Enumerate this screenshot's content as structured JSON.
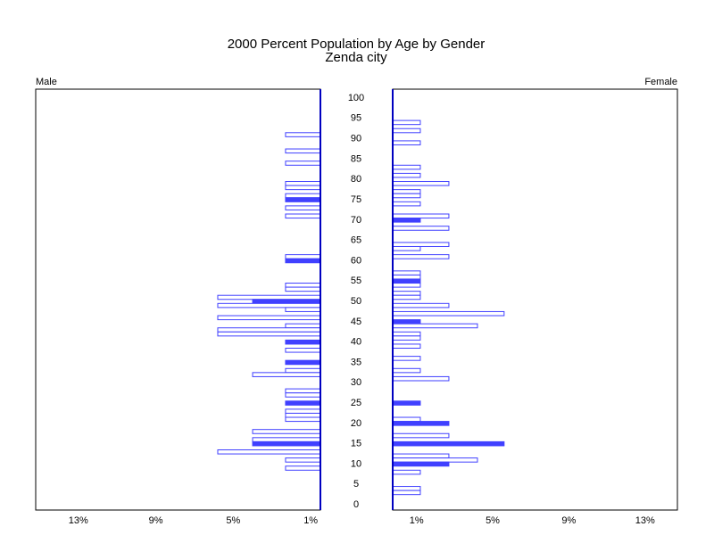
{
  "chart_data": {
    "type": "population-pyramid",
    "title": "2000 Percent Population by Age by Gender",
    "subtitle": "Zenda city",
    "ylim": [
      -1.3,
      102.2
    ],
    "yticks": [
      0,
      5,
      10,
      15,
      20,
      25,
      30,
      35,
      40,
      45,
      50,
      55,
      60,
      65,
      70,
      75,
      80,
      85,
      90,
      95,
      100
    ],
    "color": "#4040ff",
    "panels": [
      {
        "name": "Male",
        "side": "left",
        "xlim": [
          0.5,
          15.2
        ],
        "xticks": [
          {
            "value": 13,
            "label": "13%"
          },
          {
            "value": 9,
            "label": "9%"
          },
          {
            "value": 5,
            "label": "5%"
          },
          {
            "value": 1,
            "label": "1%"
          }
        ],
        "ages": [
          91,
          87,
          84,
          79,
          78,
          76,
          75,
          73,
          71,
          61,
          60,
          54,
          53,
          51,
          50,
          49,
          48,
          46,
          44,
          43,
          42,
          40,
          38,
          35,
          33,
          32,
          28,
          27,
          25,
          23,
          22,
          21,
          18,
          16,
          15,
          13,
          11,
          9
        ],
        "values": [
          2.3,
          2.3,
          2.3,
          2.3,
          2.3,
          2.3,
          2.3,
          2.3,
          2.3,
          2.3,
          2.3,
          2.3,
          2.3,
          5.8,
          4.0,
          5.8,
          2.3,
          5.8,
          2.3,
          5.8,
          5.8,
          2.3,
          2.3,
          2.3,
          2.3,
          4.0,
          2.3,
          2.3,
          2.3,
          2.3,
          2.3,
          2.3,
          4.0,
          4.0,
          4.0,
          5.8,
          2.3,
          2.3
        ]
      },
      {
        "name": "Female",
        "side": "right",
        "xlim": [
          -0.25,
          14.7
        ],
        "xticks": [
          {
            "value": 1,
            "label": "1%"
          },
          {
            "value": 5,
            "label": "5%"
          },
          {
            "value": 9,
            "label": "9%"
          },
          {
            "value": 13,
            "label": "13%"
          }
        ],
        "ages": [
          94,
          92,
          89,
          83,
          81,
          79,
          77,
          76,
          74,
          71,
          70,
          68,
          64,
          63,
          61,
          57,
          56,
          55,
          54,
          52,
          51,
          49,
          47,
          45,
          44,
          42,
          41,
          39,
          36,
          33,
          31,
          25,
          21,
          20,
          17,
          15,
          12,
          11,
          10,
          8,
          4,
          3
        ],
        "values": [
          1.2,
          1.2,
          1.2,
          1.2,
          1.2,
          2.7,
          1.2,
          1.2,
          1.2,
          2.7,
          1.2,
          2.7,
          2.7,
          1.2,
          2.7,
          1.2,
          1.2,
          1.2,
          1.2,
          1.2,
          1.2,
          2.7,
          5.6,
          1.2,
          4.2,
          1.2,
          1.2,
          1.2,
          1.2,
          1.2,
          2.7,
          1.2,
          1.2,
          2.7,
          2.7,
          5.6,
          2.7,
          4.2,
          2.7,
          1.2,
          1.2,
          1.2
        ]
      }
    ]
  }
}
